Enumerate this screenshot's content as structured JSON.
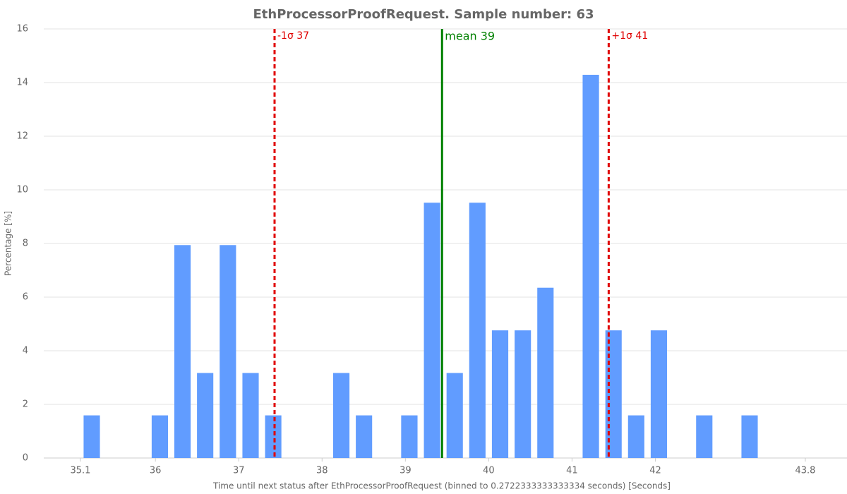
{
  "chart_data": {
    "type": "histogram",
    "title": "EthProcessorProofRequest. Sample number: 63",
    "x_label": "Time until next status after EthProcessorProofRequest (binned to 0.2722333333333334 seconds) [Seconds]",
    "y_label": "Percentage [%]",
    "bins": [
      35.1,
      35.372,
      35.644,
      35.917,
      36.189,
      36.461,
      36.733,
      37.006,
      37.278,
      37.55,
      37.822,
      38.095,
      38.367,
      38.639,
      38.911,
      39.184,
      39.456,
      39.728,
      40.0,
      40.273,
      40.545,
      40.817,
      41.089,
      41.362,
      41.634,
      41.906,
      42.178,
      42.451,
      42.723,
      42.995,
      43.267,
      43.54,
      43.812
    ],
    "values": [
      1.59,
      0,
      0,
      1.59,
      7.94,
      3.17,
      7.94,
      3.17,
      1.59,
      0,
      0,
      3.17,
      1.59,
      0,
      1.59,
      9.52,
      3.17,
      9.52,
      4.76,
      4.76,
      6.35,
      0,
      14.29,
      4.76,
      1.59,
      4.76,
      0,
      1.59,
      0,
      1.59,
      0,
      0
    ],
    "color": "#619cff",
    "xlim": [
      34.66,
      44.3
    ],
    "xticks": [
      35.1,
      36,
      37,
      38,
      39,
      40,
      41,
      42,
      43.8
    ],
    "ylim": [
      0,
      16
    ],
    "yticks": [
      0,
      2,
      4,
      6,
      8,
      10,
      12,
      14,
      16
    ],
    "grid": true,
    "markers": [
      {
        "value": 37.43,
        "label": "-1σ 37",
        "color": "#e00000",
        "dashed": true
      },
      {
        "value": 39.44,
        "label": "mean 39",
        "color": "#008000",
        "dashed": false
      },
      {
        "value": 41.44,
        "label": "+1σ 41",
        "color": "#e00000",
        "dashed": true
      }
    ]
  }
}
